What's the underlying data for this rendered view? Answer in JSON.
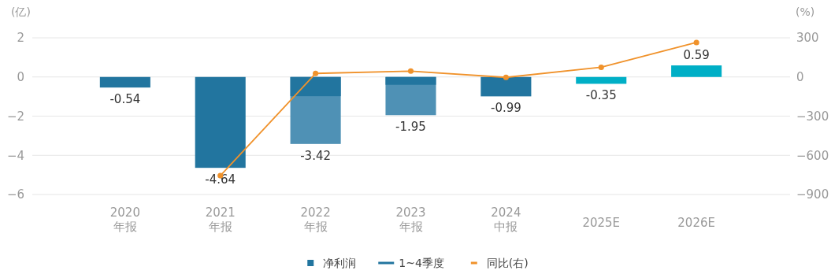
{
  "chart_data": {
    "type": "bar",
    "categories": [
      "2020\n年报",
      "2021\n年报",
      "2022\n年报",
      "2023\n年报",
      "2024\n中报",
      "2025E",
      "2026E"
    ],
    "series": [
      {
        "name": "净利润",
        "colors": [
          "#22759f",
          "#22759f",
          "#4f91b5",
          "#4f91b5",
          "#22759f",
          "#00afc6",
          "#00afc6"
        ],
        "color": "#22759f",
        "values": [
          -0.54,
          -4.64,
          -3.42,
          -1.95,
          -0.99,
          -0.35,
          0.59
        ],
        "value_labels": [
          "-0.54",
          "-4.64",
          "-3.42",
          "-1.95",
          "-0.99",
          "-0.35",
          "0.59"
        ]
      },
      {
        "name": "1~4季度",
        "color": "#22759f",
        "values": [
          null,
          null,
          -0.98,
          -0.4,
          null,
          null,
          null
        ]
      },
      {
        "name": "同比(右)",
        "type": "line",
        "axis": "y2",
        "color": "#f0922b",
        "values": [
          null,
          -756,
          27,
          45,
          -3,
          74,
          264
        ]
      }
    ],
    "ylabel": "(亿)",
    "y2label": "(%)",
    "ylim": [
      -6,
      2
    ],
    "yticks": [
      -6,
      -4,
      -2,
      0,
      2
    ],
    "y2lim": [
      -900,
      300
    ],
    "y2ticks": [
      -900,
      -600,
      -300,
      0,
      300
    ],
    "grid": "y",
    "legend": "bottom",
    "marker": "circle",
    "line_style": "solid"
  }
}
